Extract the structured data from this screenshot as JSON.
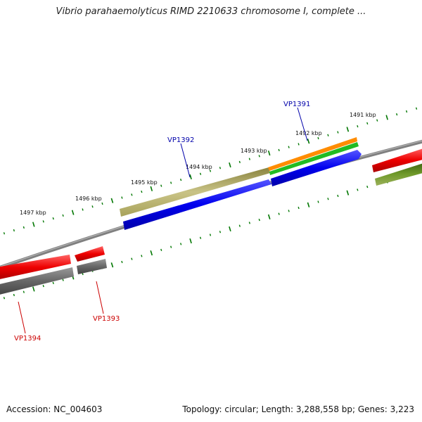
{
  "title": "Vibrio parahaemolyticus RIMD 2210633 chromosome I, complete ...",
  "footer": {
    "accession": "Accession: NC_004603",
    "summary": "Topology: circular; Length: 3,288,558 bp; Genes: 3,223"
  },
  "scale": {
    "tick_labels": [
      "1497 kbp",
      "1496 kbp",
      "1495 kbp",
      "1494 kbp",
      "1493 kbp",
      "1492 kbp",
      "1491 kbp"
    ]
  },
  "genes": [
    {
      "label": "VP1391",
      "color": "#0000aa"
    },
    {
      "label": "VP1392",
      "color": "#0000aa"
    },
    {
      "label": "VP1393",
      "color": "#cc0000"
    },
    {
      "label": "VP1394",
      "color": "#cc0000"
    }
  ],
  "colors": {
    "backbone": "#7f7f7f",
    "ticks": "#007700",
    "cds_forward": "#0000ee",
    "cds_reverse": "#ee0000",
    "gene_reverse": "#666666",
    "gene_forward": "#a8a25a",
    "misc_feature": "#ff8800",
    "green_feature": "#22bb22",
    "olive_feature": "#5d8a1c"
  }
}
